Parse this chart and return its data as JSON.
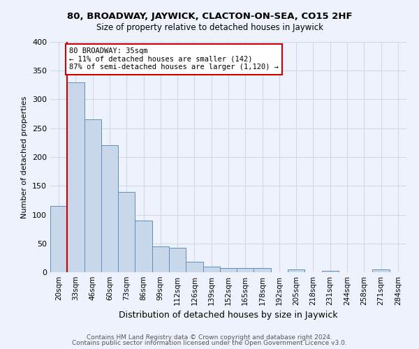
{
  "title1": "80, BROADWAY, JAYWICK, CLACTON-ON-SEA, CO15 2HF",
  "title2": "Size of property relative to detached houses in Jaywick",
  "xlabel": "Distribution of detached houses by size in Jaywick",
  "ylabel": "Number of detached properties",
  "bin_labels": [
    "20sqm",
    "33sqm",
    "46sqm",
    "60sqm",
    "73sqm",
    "86sqm",
    "99sqm",
    "112sqm",
    "126sqm",
    "139sqm",
    "152sqm",
    "165sqm",
    "178sqm",
    "192sqm",
    "205sqm",
    "218sqm",
    "231sqm",
    "244sqm",
    "258sqm",
    "271sqm",
    "284sqm"
  ],
  "bar_heights": [
    115,
    330,
    265,
    220,
    140,
    90,
    45,
    42,
    18,
    10,
    7,
    7,
    7,
    0,
    5,
    0,
    3,
    0,
    0,
    5,
    0
  ],
  "bar_color": "#c8d8ea",
  "bar_edge_color": "#6090b8",
  "property_line_color": "#cc0000",
  "annotation_text": "80 BROADWAY: 35sqm\n← 11% of detached houses are smaller (142)\n87% of semi-detached houses are larger (1,120) →",
  "annotation_box_color": "#ffffff",
  "annotation_box_edge": "#cc0000",
  "ylim": [
    0,
    400
  ],
  "yticks": [
    0,
    50,
    100,
    150,
    200,
    250,
    300,
    350,
    400
  ],
  "grid_color": "#d0d8ec",
  "footer1": "Contains HM Land Registry data © Crown copyright and database right 2024.",
  "footer2": "Contains public sector information licensed under the Open Government Licence v3.0.",
  "bg_color": "#eef2fc"
}
